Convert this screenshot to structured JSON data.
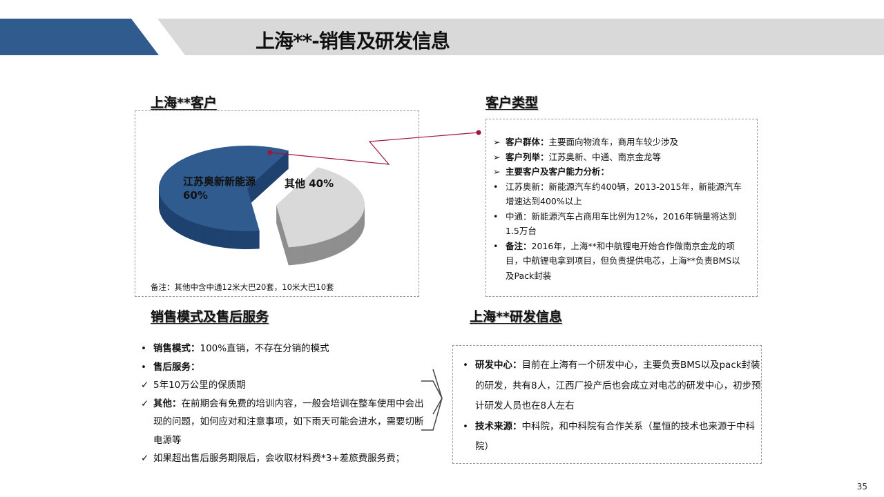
{
  "title": "上海**-销售及研发信息",
  "customers": {
    "heading": "上海**客户",
    "note": "备注：其他中含中通12米大巴20套，10米大巴10套"
  },
  "chart_data": {
    "type": "pie",
    "style": "3d-exploded",
    "slices": [
      {
        "label": "江苏奥新新能源",
        "value": 60,
        "display": "60%",
        "color": "#2f5b8e"
      },
      {
        "label": "其他",
        "value": 40,
        "display": "40%",
        "color": "#d9d9d9"
      }
    ]
  },
  "customer_types": {
    "heading": "客户类型",
    "items": [
      {
        "marker": "➢",
        "bold": "客户群体：",
        "text": "主要面向物流车，商用车较少涉及"
      },
      {
        "marker": "➢",
        "bold": "客户列举：",
        "text": "江苏奥新、中通、南京金龙等"
      },
      {
        "marker": "➢",
        "bold": "主要客户及客户能力分析：",
        "text": ""
      },
      {
        "marker": "•",
        "bold": "",
        "text": "江苏奥新：新能源汽车约400辆，2013-2015年，新能源汽车增速达到400%以上"
      },
      {
        "marker": "•",
        "bold": "",
        "text": "中通：新能源汽车占商用车比例为12%，2016年销量将达到1.5万台"
      },
      {
        "marker": "•",
        "bold": "备注：",
        "text": "2016年，上海**和中航锂电开始合作做南京金龙的项目，中航锂电拿到项目，但负责提供电芯，上海**负责BMS以及Pack封装"
      }
    ]
  },
  "sales": {
    "heading": "销售模式及售后服务",
    "items": [
      {
        "marker": "•",
        "bold": "销售模式：",
        "text": "100%直销，不存在分销的模式"
      },
      {
        "marker": "•",
        "bold": "售后服务：",
        "text": ""
      },
      {
        "marker": "✓",
        "bold": "",
        "text": "5年10万公里的保质期"
      },
      {
        "marker": "✓",
        "bold": "其他：",
        "text": "在前期会有免费的培训内容，一般会培训在整车使用中会出现的问题，如何应对和注意事项，如下雨天可能会进水，需要切断电源等"
      },
      {
        "marker": "✓",
        "bold": "",
        "text": "如果超出售后服务期限后，会收取材料费*3+差旅费服务费；"
      }
    ]
  },
  "rnd": {
    "heading": "上海**研发信息",
    "items": [
      {
        "marker": "•",
        "bold": "研发中心：",
        "text": "目前在上海有一个研发中心，主要负责BMS以及pack封装的研发，共有8人，江西厂投产后也会成立对电芯的研发中心，初步预计研发人员也在8人左右"
      },
      {
        "marker": "•",
        "bold": "技术来源：",
        "text": "中科院，和中科院有合作关系（星恒的技术也来源于中科院）"
      }
    ]
  },
  "page_number": "35"
}
